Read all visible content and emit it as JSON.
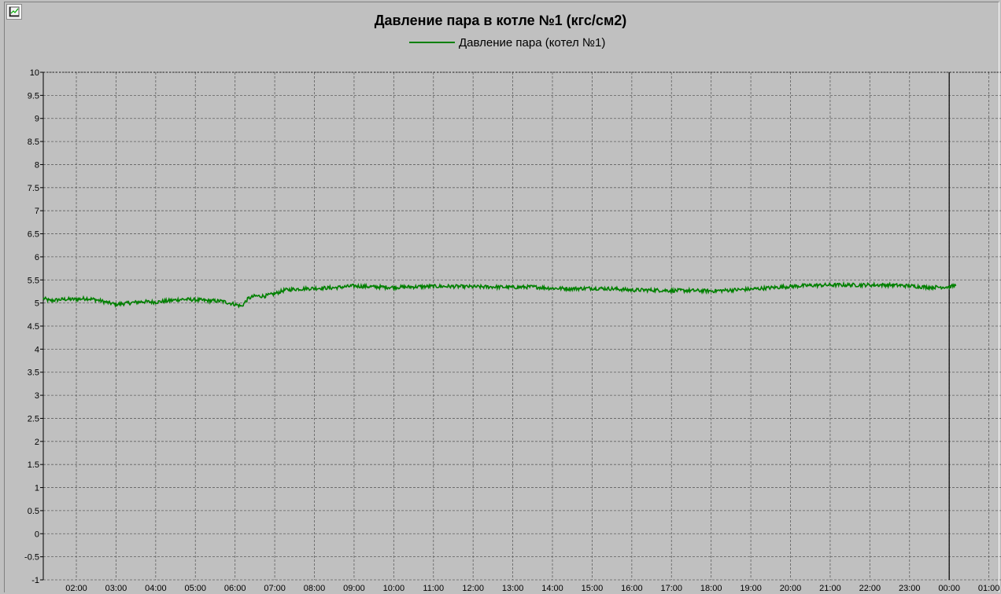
{
  "colors": {
    "background": "#c0c0c0",
    "grid": "#606060",
    "series": "#008000"
  },
  "toolbar": {
    "icon": "chart-settings-icon"
  },
  "chart_data": {
    "type": "line",
    "title": "Давление пара в котле №1 (кгс/см2)",
    "legend": "top-center",
    "grid": true,
    "ylim": [
      -1,
      10
    ],
    "yticks": [
      "10",
      "9.5",
      "9",
      "8.5",
      "8",
      "7.5",
      "7",
      "6.5",
      "6",
      "5.5",
      "5",
      "4.5",
      "4",
      "3.5",
      "3",
      "2.5",
      "2",
      "1.5",
      "1",
      "0.5",
      "0",
      "-0.5",
      "-1"
    ],
    "xlim": [
      "01:10",
      "01:10 (next day)"
    ],
    "xticks": [
      "02:00",
      "03:00",
      "04:00",
      "05:00",
      "06:00",
      "07:00",
      "08:00",
      "09:00",
      "10:00",
      "11:00",
      "12:00",
      "13:00",
      "14:00",
      "15:00",
      "16:00",
      "17:00",
      "18:00",
      "19:00",
      "20:00",
      "21:00",
      "22:00",
      "23:00",
      "00:00",
      "01:00"
    ],
    "cursor_time": "00:00",
    "series": [
      {
        "name": "Давление пара (котел №1)",
        "color": "#008000",
        "x": [
          "01:10",
          "01:20",
          "01:40",
          "02:00",
          "02:15",
          "02:30",
          "02:50",
          "03:00",
          "03:20",
          "03:40",
          "04:00",
          "04:20",
          "04:40",
          "05:00",
          "05:20",
          "05:40",
          "06:00",
          "06:10",
          "06:20",
          "06:30",
          "06:45",
          "07:00",
          "07:15",
          "07:30",
          "08:00",
          "08:30",
          "09:00",
          "09:30",
          "10:00",
          "10:30",
          "11:00",
          "11:30",
          "12:00",
          "12:30",
          "13:00",
          "13:30",
          "14:00",
          "14:30",
          "15:00",
          "15:30",
          "16:00",
          "16:30",
          "17:00",
          "17:30",
          "18:00",
          "18:30",
          "19:00",
          "19:30",
          "20:00",
          "20:30",
          "21:00",
          "21:30",
          "22:00",
          "22:30",
          "23:00",
          "23:30",
          "00:00",
          "00:10"
        ],
        "values": [
          5.1,
          5.05,
          5.08,
          5.08,
          5.1,
          5.07,
          5.0,
          4.97,
          5.0,
          5.03,
          5.02,
          5.05,
          5.08,
          5.07,
          5.05,
          5.04,
          4.97,
          4.93,
          5.1,
          5.15,
          5.15,
          5.2,
          5.28,
          5.3,
          5.32,
          5.33,
          5.37,
          5.35,
          5.34,
          5.35,
          5.36,
          5.36,
          5.35,
          5.35,
          5.34,
          5.35,
          5.32,
          5.31,
          5.32,
          5.31,
          5.28,
          5.28,
          5.27,
          5.27,
          5.26,
          5.28,
          5.3,
          5.33,
          5.36,
          5.38,
          5.39,
          5.39,
          5.39,
          5.39,
          5.37,
          5.34,
          5.35,
          5.38
        ]
      }
    ]
  }
}
